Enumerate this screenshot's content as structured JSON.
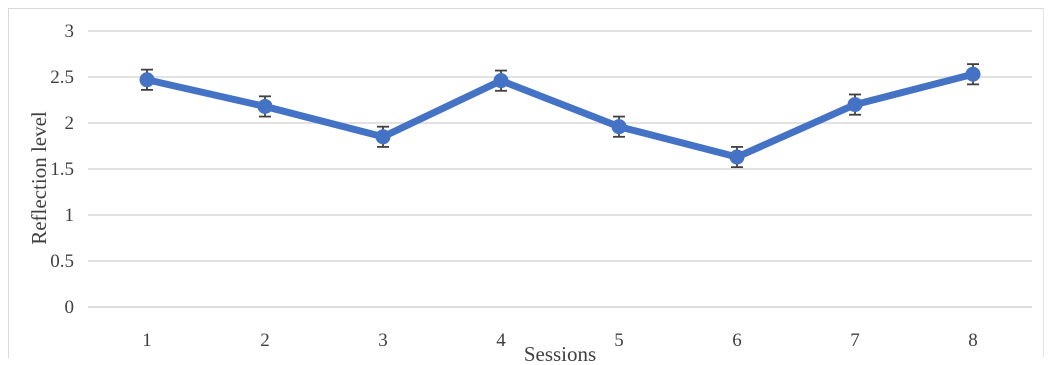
{
  "chart_data": {
    "type": "line",
    "xlabel": "Sessions",
    "ylabel": "Reflection level",
    "categories": [
      "1",
      "2",
      "3",
      "4",
      "5",
      "6",
      "7",
      "8"
    ],
    "yticks": [
      "0",
      "0.5",
      "1",
      "1.5",
      "2",
      "2.5",
      "3"
    ],
    "ylim": [
      0,
      3
    ],
    "grid": true,
    "series": [
      {
        "values": [
          2.47,
          2.18,
          1.85,
          2.46,
          1.96,
          1.63,
          2.2,
          2.53
        ],
        "error": [
          0.11,
          0.11,
          0.11,
          0.11,
          0.11,
          0.11,
          0.11,
          0.11
        ],
        "color": "#4472c4"
      }
    ],
    "error_bar_color": "#404040"
  }
}
